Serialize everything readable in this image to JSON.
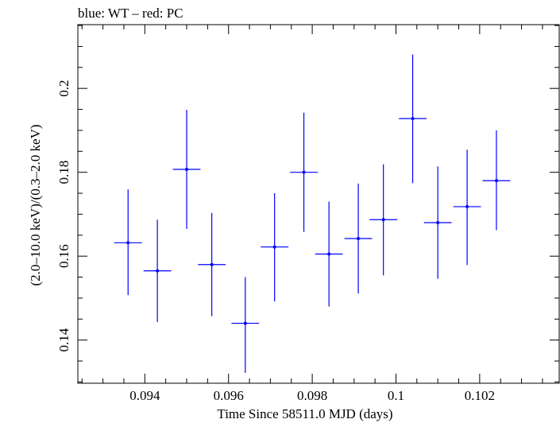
{
  "chart_data": {
    "type": "scatter",
    "title": "blue: WT – red: PC",
    "xlabel": "Time Since 58511.0 MJD (days)",
    "ylabel": "(2.0–10.0 keV)/(0.3–2.0 keV)",
    "xlim": [
      0.0924,
      0.1039
    ],
    "ylim": [
      0.1297,
      0.2152
    ],
    "xticks": [
      0.094,
      0.096,
      0.098,
      0.1,
      0.102
    ],
    "xtick_labels": [
      "0.094",
      "0.096",
      "0.098",
      "0.1",
      "0.102"
    ],
    "yticks": [
      0.14,
      0.16,
      0.18,
      0.2
    ],
    "ytick_labels": [
      "0.14",
      "0.16",
      "0.18",
      "0.2"
    ],
    "grid": false,
    "series_color": "#0000ff",
    "series": [
      {
        "x": [
          0.0936,
          0.0943,
          0.095,
          0.0956,
          0.0964,
          0.0971,
          0.0978,
          0.0984,
          0.0991,
          0.0997,
          0.1004,
          0.101,
          0.1017,
          0.1024
        ],
        "xerr": [
          0.00033,
          0.00033,
          0.00033,
          0.00033,
          0.00033,
          0.00033,
          0.00033,
          0.00033,
          0.00033,
          0.00033,
          0.00033,
          0.00033,
          0.00033,
          0.00033
        ],
        "y": [
          0.1632,
          0.1565,
          0.1807,
          0.158,
          0.144,
          0.1622,
          0.18,
          0.1605,
          0.1642,
          0.1687,
          0.1928,
          0.168,
          0.1718,
          0.178
        ],
        "yerr_low": [
          0.0125,
          0.0122,
          0.0142,
          0.0123,
          0.0118,
          0.013,
          0.0142,
          0.0125,
          0.0131,
          0.0133,
          0.0154,
          0.0134,
          0.0139,
          0.0118
        ],
        "yerr_high": [
          0.0127,
          0.0122,
          0.0142,
          0.0123,
          0.011,
          0.0128,
          0.0142,
          0.0125,
          0.0131,
          0.0132,
          0.0153,
          0.0134,
          0.0136,
          0.012
        ]
      }
    ]
  }
}
